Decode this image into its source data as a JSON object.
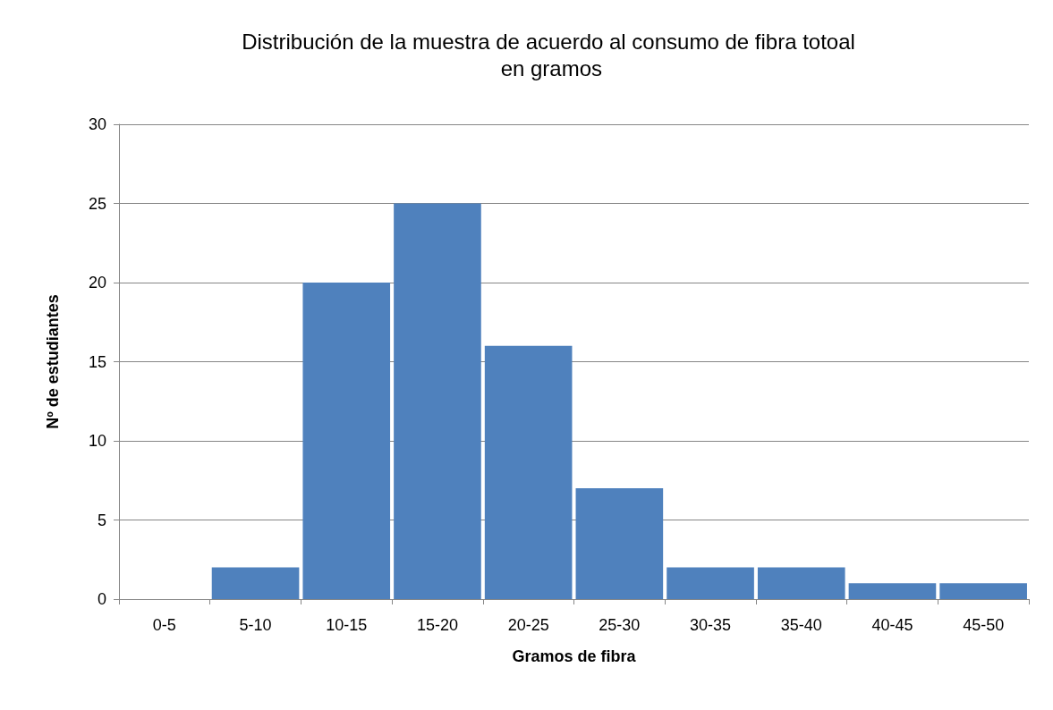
{
  "chart_data": {
    "type": "bar",
    "title": "Distribución de la muestra de acuerdo al consumo de fibra totoal en gramos",
    "xlabel": "Gramos de fibra",
    "ylabel": "Nº de estudiantes",
    "categories": [
      "0-5",
      "5-10",
      "10-15",
      "15-20",
      "20-25",
      "25-30",
      "30-35",
      "35-40",
      "40-45",
      "45-50"
    ],
    "values": [
      0,
      2,
      20,
      25,
      16,
      7,
      2,
      2,
      1,
      1
    ],
    "color": "#4f81bd",
    "ylim": [
      0,
      30
    ],
    "yticks": [
      0,
      5,
      10,
      15,
      20,
      25,
      30
    ],
    "grid": "y"
  }
}
